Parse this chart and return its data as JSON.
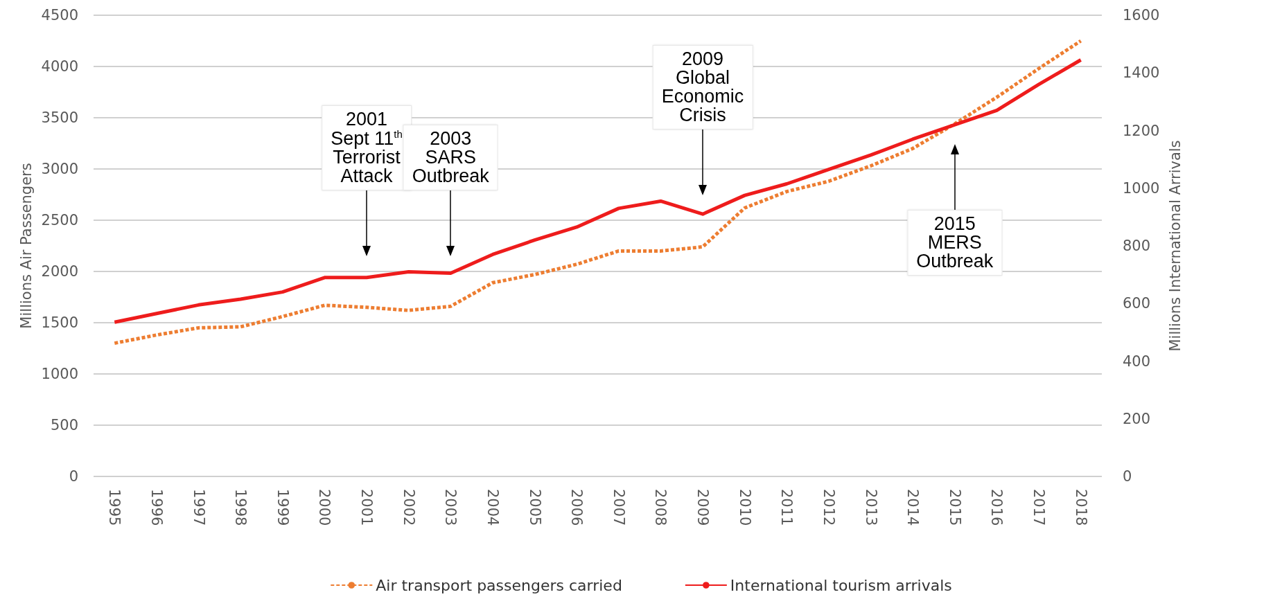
{
  "chart_data": {
    "type": "line",
    "categories": [
      "1995",
      "1996",
      "1997",
      "1998",
      "1999",
      "2000",
      "2001",
      "2002",
      "2003",
      "2004",
      "2005",
      "2006",
      "2007",
      "2008",
      "2009",
      "2010",
      "2011",
      "2012",
      "2013",
      "2014",
      "2015",
      "2016",
      "2017",
      "2018"
    ],
    "series": [
      {
        "name": "Air transport passengers carried",
        "color": "#ed7d31",
        "line_style": "dashed",
        "values": [
          1300,
          1380,
          1450,
          1460,
          1560,
          1670,
          1650,
          1620,
          1660,
          1890,
          1970,
          2070,
          2200,
          2200,
          2240,
          2620,
          2780,
          2880,
          3030,
          3200,
          3440,
          3700,
          3980,
          4250
        ]
      },
      {
        "name": "International tourism arrivals",
        "color": "#ee1c1c",
        "line_style": "solid",
        "axis": "y2",
        "values": [
          535,
          565,
          595,
          615,
          640,
          690,
          690,
          710,
          705,
          770,
          820,
          865,
          930,
          955,
          910,
          975,
          1015,
          1065,
          1115,
          1170,
          1220,
          1270,
          1360,
          1445
        ]
      }
    ],
    "ylabel": "Millions Air Passengers",
    "y2label": "Millions International Arrivals",
    "ylim": [
      0,
      4500
    ],
    "yticks": [
      0,
      500,
      1000,
      1500,
      2000,
      2500,
      3000,
      3500,
      4000,
      4500
    ],
    "y2lim": [
      0,
      1600
    ],
    "y2ticks": [
      0,
      200,
      400,
      600,
      800,
      1000,
      1200,
      1400,
      1600
    ],
    "grid": "y",
    "legend": "bottom",
    "marker": "none",
    "annotations": [
      "2001\nSept 11$^{th}$\nTerrorist\nAttack",
      "2003\nSARS\nOutbreak",
      "2009\nGlobal\nEconomic\nCrisis",
      "2015\nMERS\nOutbreak"
    ]
  }
}
